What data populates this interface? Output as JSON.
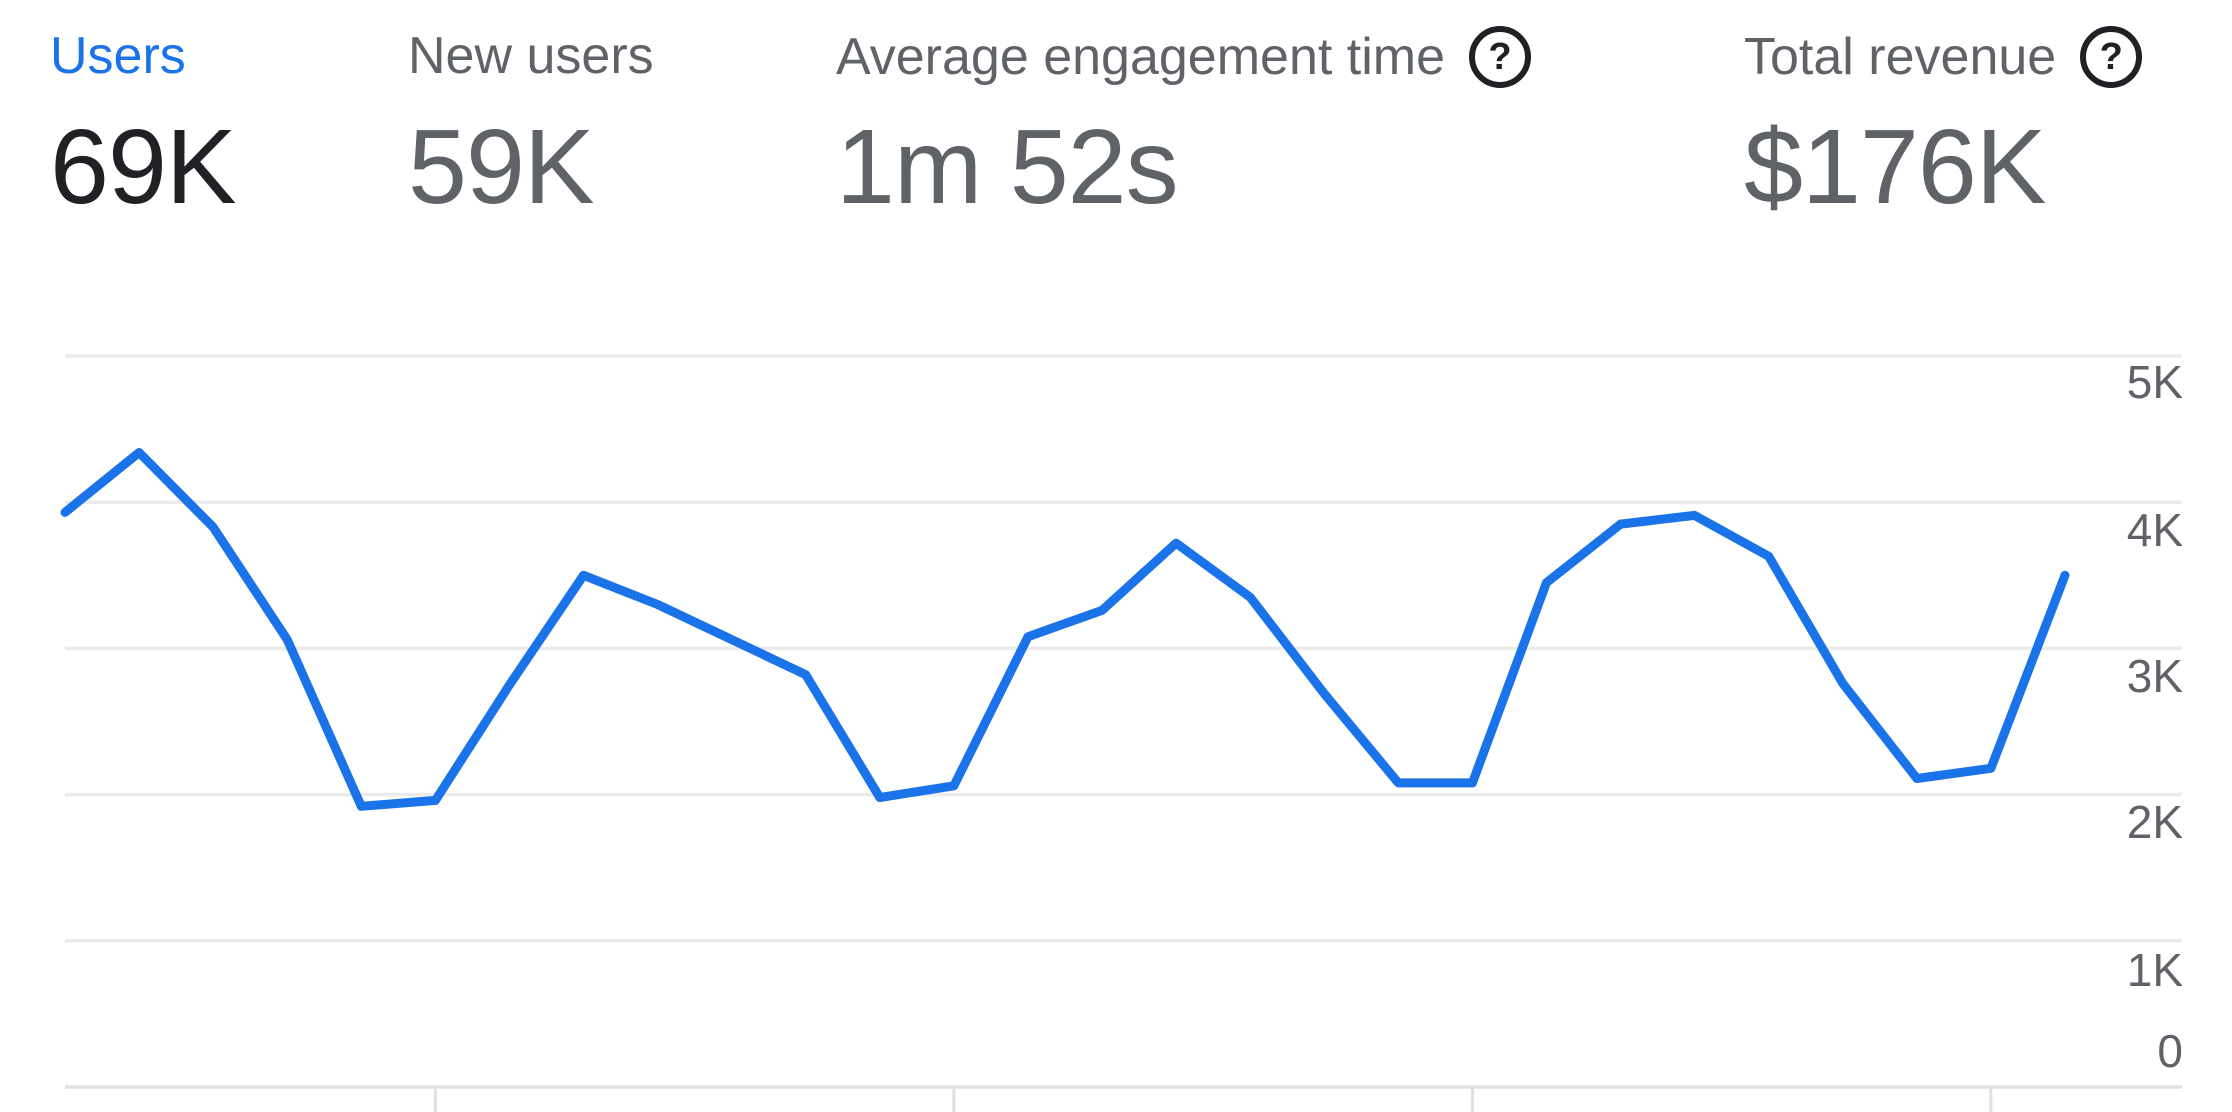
{
  "metrics": [
    {
      "label": "Users",
      "value": "69K",
      "selected": true,
      "has_help": false
    },
    {
      "label": "New users",
      "value": "59K",
      "selected": false,
      "has_help": false
    },
    {
      "label": "Average engagement time",
      "value": "1m 52s",
      "selected": false,
      "has_help": true
    },
    {
      "label": "Total revenue",
      "value": "$176K",
      "selected": false,
      "has_help": true
    }
  ],
  "help_icon_glyph": "?",
  "colors": {
    "accent": "#1a73e8",
    "ink": "#202124",
    "muted": "#5f6368",
    "icon": "#202124",
    "gridline": "#ebebeb",
    "axis": "#e0e0e0",
    "line": "#1a73e8"
  },
  "chart_data": {
    "type": "line",
    "title": "Users per day",
    "series": [
      {
        "name": "Users",
        "color": "#1a73e8",
        "values": [
          3930,
          4340,
          3830,
          3060,
          1920,
          1960,
          2750,
          3500,
          3300,
          3060,
          2820,
          1980,
          2060,
          3080,
          3260,
          3720,
          3350,
          2690,
          2080,
          2080,
          3450,
          3850,
          3910,
          3630,
          2760,
          2110,
          2180,
          3500
        ]
      }
    ],
    "x_labels_visible": false,
    "x_tick_indices": [
      5,
      12,
      19,
      26
    ],
    "ylim": [
      0,
      5000
    ],
    "yticks": [
      {
        "value": 5000,
        "label": "5K"
      },
      {
        "value": 4000,
        "label": "4K"
      },
      {
        "value": 3000,
        "label": "3K"
      },
      {
        "value": 2000,
        "label": "2K"
      },
      {
        "value": 1000,
        "label": "1K"
      },
      {
        "value": 0,
        "label": "0"
      }
    ],
    "grid": "horizontal",
    "legend": "none"
  }
}
